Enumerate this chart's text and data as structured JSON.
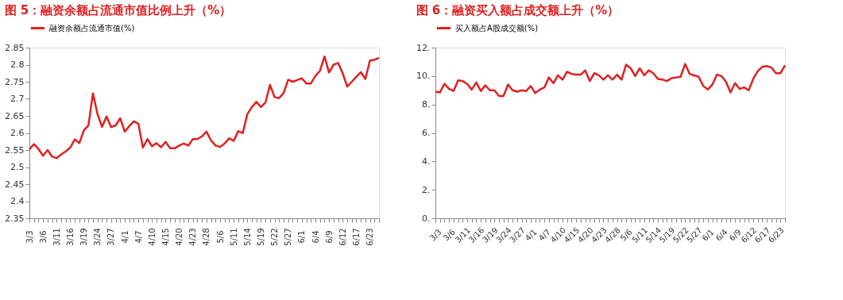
{
  "chart_data": [
    {
      "type": "line",
      "title": "图 5：融资余额占流通市值比例上升（%）",
      "categories": [
        "3/3",
        null,
        null,
        "3/6",
        null,
        null,
        "3/11",
        null,
        null,
        "3/16",
        null,
        null,
        "3/19",
        null,
        null,
        "3/24",
        null,
        null,
        "3/27",
        null,
        null,
        "4/1",
        null,
        null,
        "4/7",
        null,
        null,
        "4/10",
        null,
        null,
        "4/15",
        null,
        null,
        "4/20",
        null,
        null,
        "4/23",
        null,
        null,
        "4/28",
        null,
        null,
        "5/6",
        null,
        null,
        "5/11",
        null,
        null,
        "5/14",
        null,
        null,
        "5/19",
        null,
        null,
        "5/22",
        null,
        null,
        "5/27",
        null,
        null,
        "6/1",
        null,
        null,
        "6/4",
        null,
        null,
        "6/9",
        null,
        null,
        "6/12",
        null,
        null,
        "6/17",
        null,
        null,
        "6/23",
        null,
        null
      ],
      "series": [
        {
          "name": "融资余额占流通市值(%)",
          "color": "#e02020",
          "values": [
            2.552,
            2.567,
            2.553,
            2.533,
            2.55,
            2.531,
            2.526,
            2.537,
            2.546,
            2.557,
            2.581,
            2.57,
            2.608,
            2.622,
            2.716,
            2.655,
            2.618,
            2.648,
            2.617,
            2.622,
            2.643,
            2.604,
            2.62,
            2.634,
            2.627,
            2.557,
            2.582,
            2.561,
            2.57,
            2.558,
            2.574,
            2.555,
            2.555,
            2.563,
            2.569,
            2.563,
            2.582,
            2.582,
            2.59,
            2.604,
            2.578,
            2.563,
            2.559,
            2.569,
            2.584,
            2.577,
            2.605,
            2.6,
            2.655,
            2.676,
            2.691,
            2.676,
            2.689,
            2.741,
            2.705,
            2.702,
            2.717,
            2.756,
            2.75,
            2.755,
            2.76,
            2.745,
            2.745,
            2.767,
            2.782,
            2.824,
            2.777,
            2.8,
            2.805,
            2.775,
            2.736,
            2.75,
            2.764,
            2.778,
            2.758,
            2.812,
            2.814,
            2.82
          ]
        }
      ],
      "ylim": [
        2.35,
        2.85
      ],
      "yticks": [
        2.35,
        2.4,
        2.45,
        2.5,
        2.55,
        2.6,
        2.65,
        2.7,
        2.75,
        2.8,
        2.85
      ],
      "grid": false,
      "legend": "top",
      "marker": "none"
    },
    {
      "type": "line",
      "title": "图 6：融资买入额占成交额上升（%）",
      "categories": [
        "3/3",
        null,
        null,
        "3/6",
        null,
        null,
        "3/11",
        null,
        null,
        "3/16",
        null,
        null,
        "3/19",
        null,
        null,
        "3/24",
        null,
        null,
        "3/27",
        null,
        null,
        "4/1",
        null,
        null,
        "4/7",
        null,
        null,
        "4/10",
        null,
        null,
        "4/15",
        null,
        null,
        "4/20",
        null,
        null,
        "4/23",
        null,
        null,
        "4/28",
        null,
        null,
        "5/6",
        null,
        null,
        "5/11",
        null,
        null,
        "5/14",
        null,
        null,
        "5/19",
        null,
        null,
        "5/22",
        null,
        null,
        "5/27",
        null,
        null,
        "6/1",
        null,
        null,
        "6/4",
        null,
        null,
        "6/9",
        null,
        null,
        "6/12",
        null,
        null,
        "6/17",
        null,
        null,
        "6/23",
        null,
        null
      ],
      "series": [
        {
          "name": "买入额占A股成交额(%)",
          "color": "#e02020",
          "values": [
            8.9,
            8.85,
            9.45,
            9.1,
            8.95,
            9.7,
            9.65,
            9.45,
            9.05,
            9.55,
            8.95,
            9.35,
            9.0,
            9.0,
            8.6,
            8.6,
            9.4,
            9.0,
            8.9,
            9.0,
            8.95,
            9.3,
            8.8,
            9.05,
            9.2,
            9.9,
            9.5,
            10.05,
            9.75,
            10.3,
            10.15,
            10.1,
            10.1,
            10.4,
            9.65,
            10.2,
            10.05,
            9.75,
            10.05,
            9.75,
            10.1,
            9.75,
            10.8,
            10.55,
            10.0,
            10.55,
            10.05,
            10.4,
            10.2,
            9.8,
            9.75,
            9.65,
            9.85,
            9.9,
            9.95,
            10.85,
            10.15,
            10.05,
            9.95,
            9.3,
            9.05,
            9.4,
            10.1,
            10.0,
            9.6,
            8.85,
            9.5,
            9.1,
            9.2,
            9.0,
            9.8,
            10.35,
            10.65,
            10.7,
            10.6,
            10.2,
            10.2,
            10.75
          ]
        }
      ],
      "ylim": [
        0,
        12
      ],
      "yticks": [
        {
          "value": 0,
          "label": "0."
        },
        {
          "value": 2,
          "label": "2."
        },
        {
          "value": 4,
          "label": "4."
        },
        {
          "value": 6,
          "label": "6."
        },
        {
          "value": 8,
          "label": "8."
        },
        {
          "value": 10,
          "label": "10."
        },
        {
          "value": 12,
          "label": "12."
        }
      ],
      "grid": false,
      "legend": "top",
      "marker": "none"
    }
  ]
}
